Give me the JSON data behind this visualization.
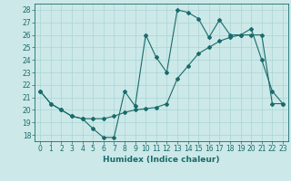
{
  "x": [
    0,
    1,
    2,
    3,
    4,
    5,
    6,
    7,
    8,
    9,
    10,
    11,
    12,
    13,
    14,
    15,
    16,
    17,
    18,
    19,
    20,
    21,
    22,
    23
  ],
  "line1": [
    21.5,
    20.5,
    20.0,
    19.5,
    19.3,
    18.5,
    17.8,
    17.8,
    21.5,
    20.3,
    26.0,
    24.2,
    23.0,
    28.0,
    27.8,
    27.3,
    25.8,
    27.2,
    26.0,
    26.0,
    26.5,
    24.0,
    21.5,
    20.5
  ],
  "line2": [
    21.5,
    20.5,
    20.0,
    19.5,
    19.3,
    19.3,
    19.3,
    19.5,
    19.8,
    20.0,
    20.1,
    20.2,
    20.5,
    22.5,
    23.5,
    24.5,
    25.0,
    25.5,
    25.8,
    26.0,
    26.0,
    26.0,
    20.5,
    20.5
  ],
  "color": "#1a6b6b",
  "bg_color": "#cce8e8",
  "grid_color": "#aad4d4",
  "xlabel": "Humidex (Indice chaleur)",
  "ylim": [
    17.5,
    28.5
  ],
  "xlim": [
    -0.5,
    23.5
  ],
  "yticks": [
    18,
    19,
    20,
    21,
    22,
    23,
    24,
    25,
    26,
    27,
    28
  ],
  "xticks": [
    0,
    1,
    2,
    3,
    4,
    5,
    6,
    7,
    8,
    9,
    10,
    11,
    12,
    13,
    14,
    15,
    16,
    17,
    18,
    19,
    20,
    21,
    22,
    23
  ]
}
